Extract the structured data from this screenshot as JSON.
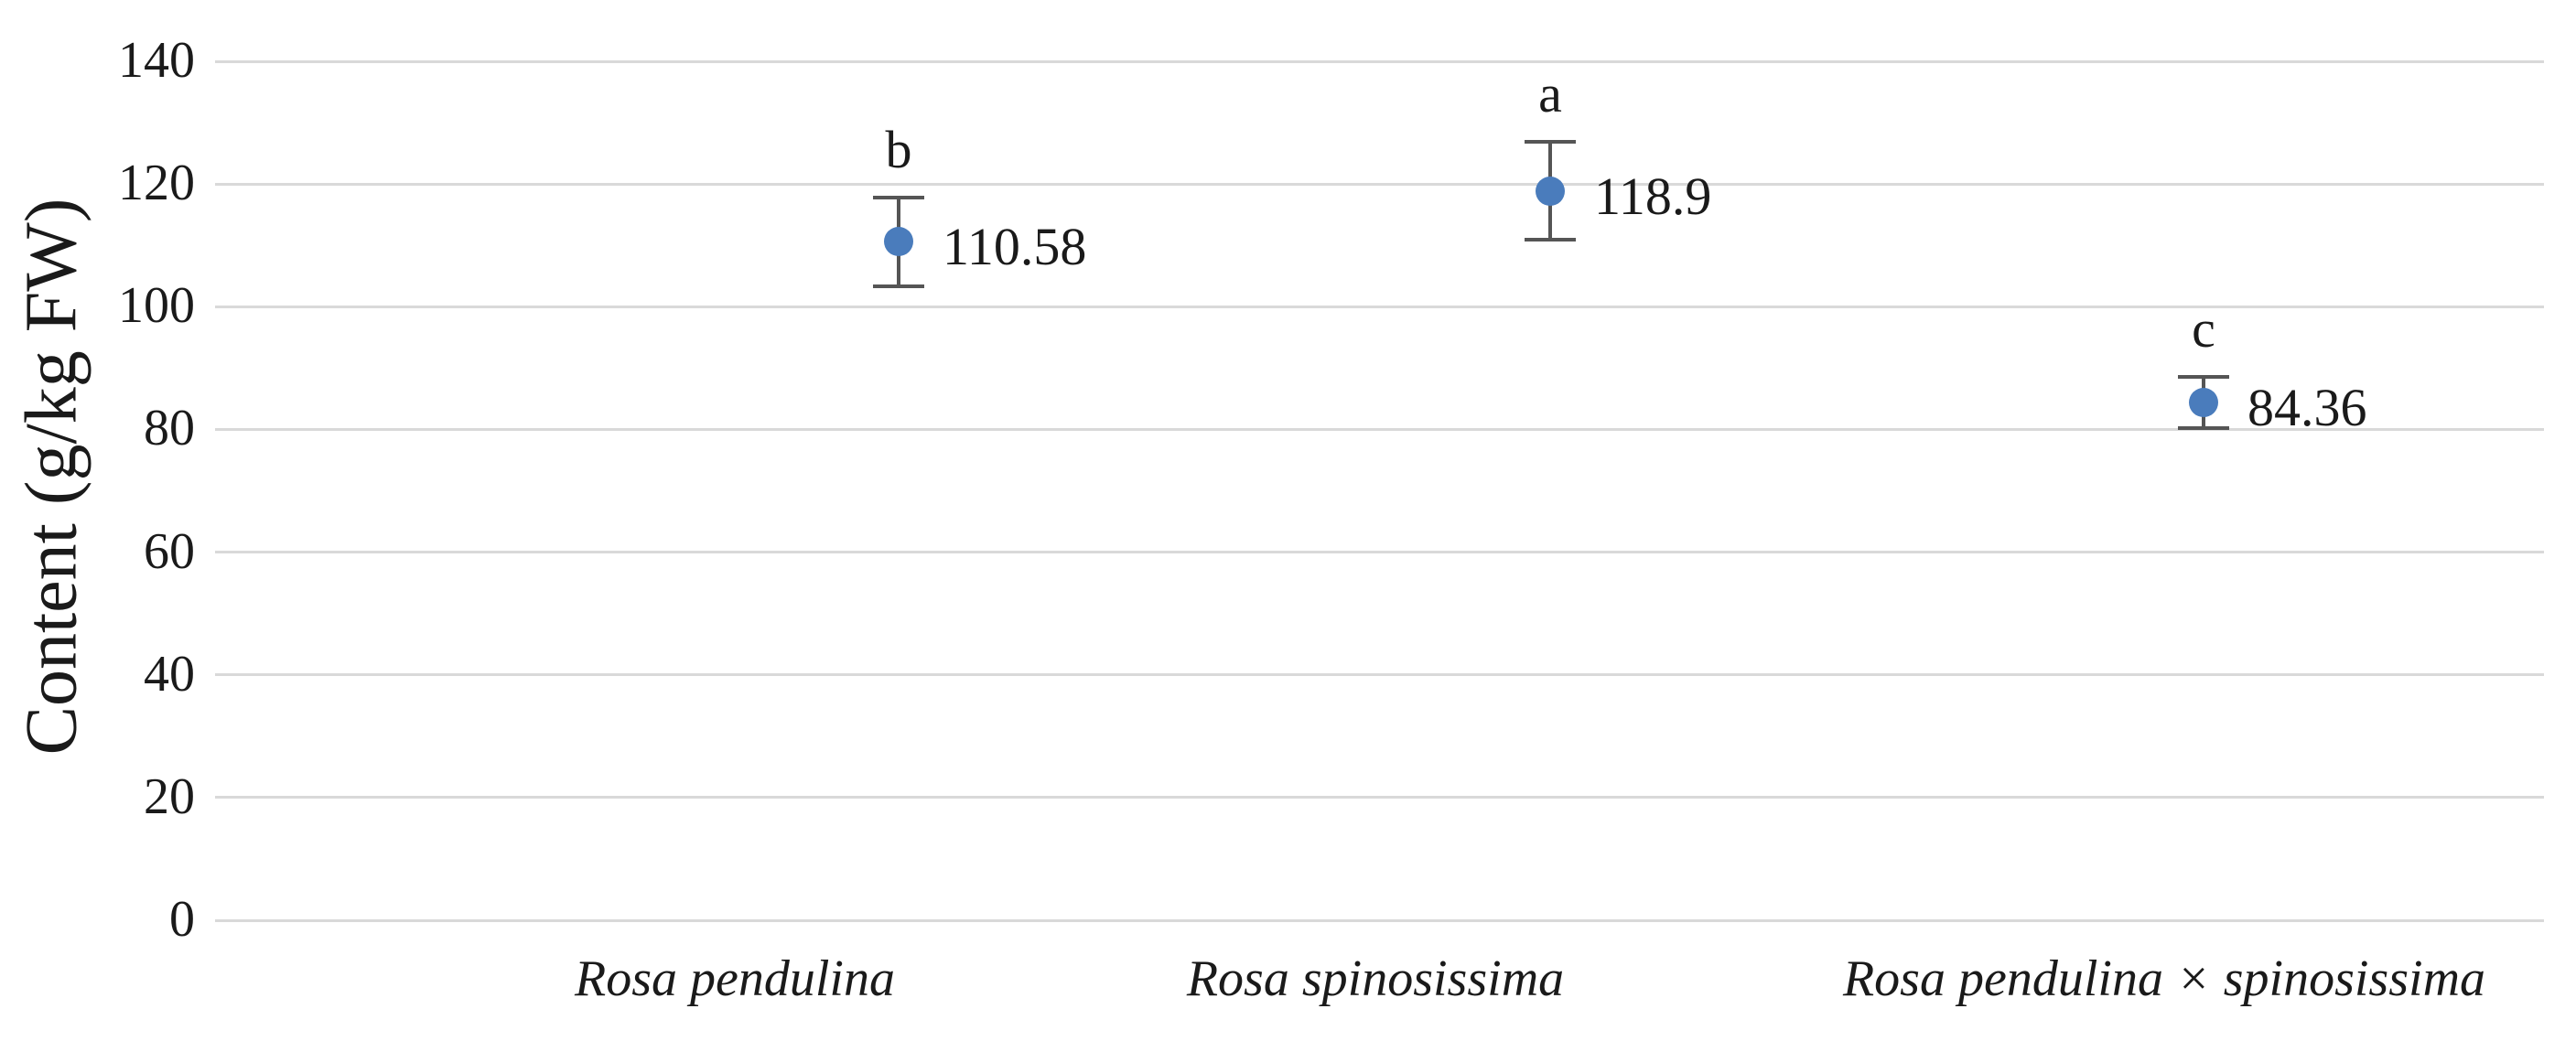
{
  "chart_data": {
    "type": "scatter",
    "title": "",
    "ylabel": "Content (g/kg FW)",
    "xlabel": "",
    "ylim": [
      0,
      140
    ],
    "ytick_step": 20,
    "yticks": [
      0,
      20,
      40,
      60,
      80,
      100,
      120,
      140
    ],
    "grid": "horizontal gridlines only, no vertical axis line",
    "legend_position": "none",
    "categories": [
      "Rosa pendulina",
      "Rosa spinosissima",
      "Rosa pendulina × spinosissima"
    ],
    "series": [
      {
        "name": "Content (g/kg FW)",
        "marker": "circle",
        "marker_color": "#4a7cbc",
        "errorbar_color": "#555555",
        "points": [
          {
            "category": "Rosa pendulina",
            "value": 110.58,
            "error_plus": 7.2,
            "error_minus": 7.2,
            "data_label": "110.58",
            "sig_letter": "b"
          },
          {
            "category": "Rosa spinosissima",
            "value": 118.9,
            "error_plus": 8.0,
            "error_minus": 8.0,
            "data_label": "118.9",
            "sig_letter": "a"
          },
          {
            "category": "Rosa pendulina × spinosissima",
            "value": 84.36,
            "error_plus": 4.2,
            "error_minus": 4.2,
            "data_label": "84.36",
            "sig_letter": "c"
          }
        ]
      }
    ],
    "colors": {
      "background": "#ffffff",
      "gridline": "#d9d9d9",
      "text": "#1a1a1a"
    }
  }
}
